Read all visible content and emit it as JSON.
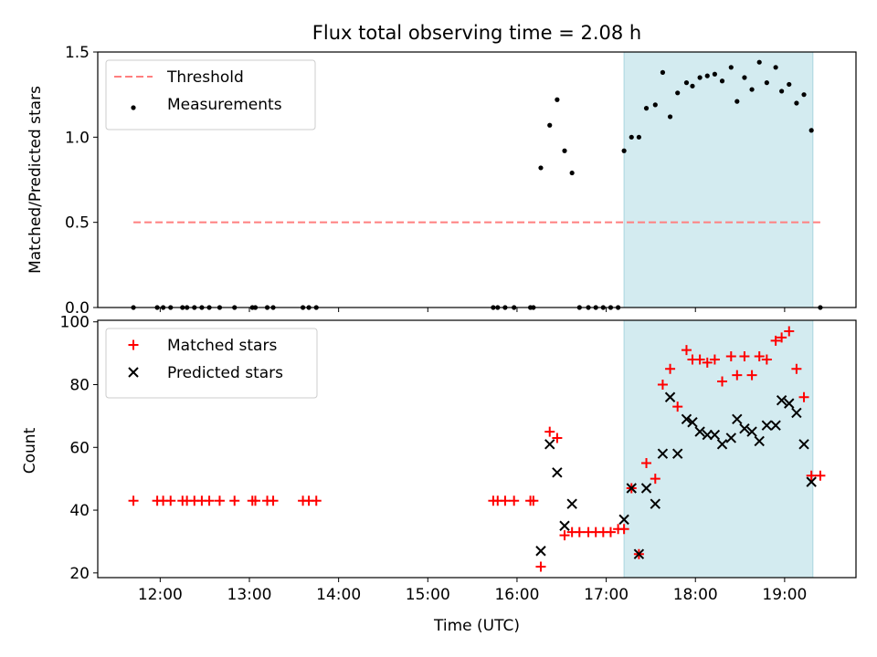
{
  "chart_data": [
    {
      "type": "scatter",
      "title": "Flux total observing time = 2.08 h",
      "xlabel": "",
      "ylabel": "Matched/Predicted stars",
      "xlim": [
        "11:18",
        "19:48"
      ],
      "ylim": [
        0,
        1.5
      ],
      "yticks": [
        "0.0",
        "0.5",
        "1.0",
        "1.5"
      ],
      "legend_position": "upper-left",
      "shaded_interval": [
        "17:12",
        "19:19"
      ],
      "shade_color": "#d3ebf0",
      "threshold": {
        "name": "Threshold",
        "value": 0.5,
        "x_range": [
          "11:42",
          "19:24"
        ],
        "color": "#ff7f7f",
        "style": "dashed"
      },
      "series": [
        {
          "name": "Measurements",
          "color": "#000000",
          "marker": "dot",
          "points": [
            [
              "11:42",
              0
            ],
            [
              "11:58",
              0
            ],
            [
              "12:02",
              0
            ],
            [
              "12:07",
              0
            ],
            [
              "12:15",
              0
            ],
            [
              "12:18",
              0
            ],
            [
              "12:23",
              0
            ],
            [
              "12:28",
              0
            ],
            [
              "12:33",
              0
            ],
            [
              "12:40",
              0
            ],
            [
              "12:50",
              0
            ],
            [
              "13:02",
              0
            ],
            [
              "13:04",
              0
            ],
            [
              "13:12",
              0
            ],
            [
              "13:16",
              0
            ],
            [
              "13:36",
              0
            ],
            [
              "13:40",
              0
            ],
            [
              "13:45",
              0
            ],
            [
              "15:44",
              0
            ],
            [
              "15:47",
              0
            ],
            [
              "15:52",
              0
            ],
            [
              "15:58",
              0
            ],
            [
              "16:09",
              0
            ],
            [
              "16:11",
              0
            ],
            [
              "16:16",
              0.82
            ],
            [
              "16:22",
              1.07
            ],
            [
              "16:27",
              1.22
            ],
            [
              "16:32",
              0.92
            ],
            [
              "16:37",
              0.79
            ],
            [
              "16:42",
              0
            ],
            [
              "16:48",
              0
            ],
            [
              "16:53",
              0
            ],
            [
              "16:58",
              0
            ],
            [
              "17:03",
              0
            ],
            [
              "17:08",
              0
            ],
            [
              "17:12",
              0.92
            ],
            [
              "17:17",
              1.0
            ],
            [
              "17:22",
              1.0
            ],
            [
              "17:27",
              1.17
            ],
            [
              "17:33",
              1.19
            ],
            [
              "17:38",
              1.38
            ],
            [
              "17:43",
              1.12
            ],
            [
              "17:48",
              1.26
            ],
            [
              "17:54",
              1.32
            ],
            [
              "17:58",
              1.3
            ],
            [
              "18:03",
              1.35
            ],
            [
              "18:08",
              1.36
            ],
            [
              "18:13",
              1.37
            ],
            [
              "18:18",
              1.33
            ],
            [
              "18:24",
              1.41
            ],
            [
              "18:28",
              1.21
            ],
            [
              "18:33",
              1.35
            ],
            [
              "18:38",
              1.28
            ],
            [
              "18:43",
              1.44
            ],
            [
              "18:48",
              1.32
            ],
            [
              "18:54",
              1.41
            ],
            [
              "18:58",
              1.27
            ],
            [
              "19:03",
              1.31
            ],
            [
              "19:08",
              1.2
            ],
            [
              "19:13",
              1.25
            ],
            [
              "19:18",
              1.04
            ],
            [
              "19:24",
              0
            ]
          ]
        }
      ]
    },
    {
      "type": "scatter",
      "title": "",
      "xlabel": "Time (UTC)",
      "ylabel": "Count",
      "xlim": [
        "11:18",
        "19:48"
      ],
      "ylim": [
        18.5,
        100.5
      ],
      "yticks": [
        "20",
        "40",
        "60",
        "80",
        "100"
      ],
      "xticks": [
        "12:00",
        "13:00",
        "14:00",
        "15:00",
        "16:00",
        "17:00",
        "18:00",
        "19:00"
      ],
      "legend_position": "upper-left",
      "shaded_interval": [
        "17:12",
        "19:19"
      ],
      "shade_color": "#d3ebf0",
      "series": [
        {
          "name": "Matched stars",
          "color": "#ff0000",
          "marker": "plus",
          "points": [
            [
              "11:42",
              43
            ],
            [
              "11:58",
              43
            ],
            [
              "12:02",
              43
            ],
            [
              "12:07",
              43
            ],
            [
              "12:15",
              43
            ],
            [
              "12:18",
              43
            ],
            [
              "12:23",
              43
            ],
            [
              "12:28",
              43
            ],
            [
              "12:33",
              43
            ],
            [
              "12:40",
              43
            ],
            [
              "12:50",
              43
            ],
            [
              "13:02",
              43
            ],
            [
              "13:04",
              43
            ],
            [
              "13:12",
              43
            ],
            [
              "13:16",
              43
            ],
            [
              "13:36",
              43
            ],
            [
              "13:40",
              43
            ],
            [
              "13:45",
              43
            ],
            [
              "15:44",
              43
            ],
            [
              "15:47",
              43
            ],
            [
              "15:52",
              43
            ],
            [
              "15:58",
              43
            ],
            [
              "16:09",
              43
            ],
            [
              "16:11",
              43
            ],
            [
              "16:16",
              22
            ],
            [
              "16:22",
              65
            ],
            [
              "16:27",
              63
            ],
            [
              "16:32",
              32
            ],
            [
              "16:37",
              33
            ],
            [
              "16:42",
              33
            ],
            [
              "16:48",
              33
            ],
            [
              "16:53",
              33
            ],
            [
              "16:58",
              33
            ],
            [
              "17:03",
              33
            ],
            [
              "17:08",
              34
            ],
            [
              "17:12",
              34
            ],
            [
              "17:17",
              47
            ],
            [
              "17:22",
              26
            ],
            [
              "17:27",
              55
            ],
            [
              "17:33",
              50
            ],
            [
              "17:38",
              80
            ],
            [
              "17:43",
              85
            ],
            [
              "17:48",
              73
            ],
            [
              "17:54",
              91
            ],
            [
              "17:58",
              88
            ],
            [
              "18:03",
              88
            ],
            [
              "18:08",
              87
            ],
            [
              "18:13",
              88
            ],
            [
              "18:18",
              81
            ],
            [
              "18:24",
              89
            ],
            [
              "18:28",
              83
            ],
            [
              "18:33",
              89
            ],
            [
              "18:38",
              83
            ],
            [
              "18:43",
              89
            ],
            [
              "18:48",
              88
            ],
            [
              "18:54",
              94
            ],
            [
              "18:58",
              95
            ],
            [
              "19:03",
              97
            ],
            [
              "19:08",
              85
            ],
            [
              "19:13",
              76
            ],
            [
              "19:18",
              51
            ],
            [
              "19:24",
              51
            ]
          ]
        },
        {
          "name": "Predicted stars",
          "color": "#000000",
          "marker": "x",
          "points": [
            [
              "16:16",
              27
            ],
            [
              "16:22",
              61
            ],
            [
              "16:27",
              52
            ],
            [
              "16:32",
              35
            ],
            [
              "16:37",
              42
            ],
            [
              "17:12",
              37
            ],
            [
              "17:17",
              47
            ],
            [
              "17:22",
              26
            ],
            [
              "17:27",
              47
            ],
            [
              "17:33",
              42
            ],
            [
              "17:38",
              58
            ],
            [
              "17:43",
              76
            ],
            [
              "17:48",
              58
            ],
            [
              "17:54",
              69
            ],
            [
              "17:58",
              68
            ],
            [
              "18:03",
              65
            ],
            [
              "18:08",
              64
            ],
            [
              "18:13",
              64
            ],
            [
              "18:18",
              61
            ],
            [
              "18:24",
              63
            ],
            [
              "18:28",
              69
            ],
            [
              "18:33",
              66
            ],
            [
              "18:38",
              65
            ],
            [
              "18:43",
              62
            ],
            [
              "18:48",
              67
            ],
            [
              "18:54",
              67
            ],
            [
              "18:58",
              75
            ],
            [
              "19:03",
              74
            ],
            [
              "19:08",
              71
            ],
            [
              "19:13",
              61
            ],
            [
              "19:18",
              49
            ]
          ]
        }
      ]
    }
  ]
}
